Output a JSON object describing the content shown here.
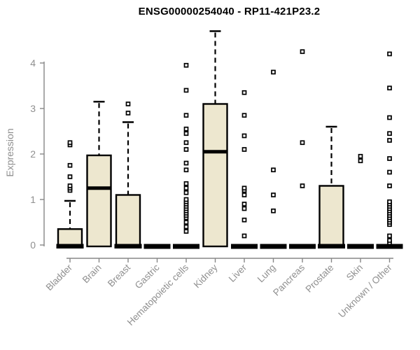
{
  "colors": {
    "background": "#ffffff",
    "box_fill": "#ede7cf",
    "box_line": "#000000",
    "axis_line": "#878787",
    "axis_text": "#8f8f8f",
    "title_text": "#000000"
  },
  "chart_data": {
    "type": "boxplot",
    "title": "ENSG00000254040 - RP11-421P23.2",
    "xlabel": "",
    "ylabel": "Expression",
    "ylim": [
      0,
      4.77
    ],
    "yticks": [
      0,
      1,
      2,
      3,
      4
    ],
    "grid": false,
    "legend": "none",
    "categories": [
      "Bladder",
      "Brain",
      "Breast",
      "Gastric",
      "Hematopoietic cells",
      "Kidney",
      "Liver",
      "Lung",
      "Pancreas",
      "Prostate",
      "Skin",
      "Unknown / Other"
    ],
    "boxes": [
      {
        "category": "Bladder",
        "q1": 0,
        "median": 0,
        "q3": 0.35,
        "whisker_low": 0,
        "whisker_high": 0.97,
        "outliers": [
          1.2,
          1.25,
          1.3,
          1.5,
          1.75,
          2.2,
          2.25
        ]
      },
      {
        "category": "Brain",
        "q1": 0,
        "median": 1.25,
        "q3": 1.97,
        "whisker_low": 0,
        "whisker_high": 3.15,
        "outliers": []
      },
      {
        "category": "Breast",
        "q1": 0,
        "median": 0,
        "q3": 1.1,
        "whisker_low": 0,
        "whisker_high": 2.7,
        "outliers": [
          2.9,
          3.1
        ]
      },
      {
        "category": "Gastric",
        "q1": 0,
        "median": 0,
        "q3": 0,
        "whisker_low": 0,
        "whisker_high": 0,
        "outliers": []
      },
      {
        "category": "Hematopoietic cells",
        "q1": 0,
        "median": 0,
        "q3": 0,
        "whisker_low": 0,
        "whisker_high": 0,
        "outliers": [
          0.3,
          0.4,
          0.5,
          0.6,
          0.65,
          0.7,
          0.75,
          0.8,
          0.85,
          0.9,
          0.95,
          1.0,
          1.15,
          1.25,
          1.35,
          1.65,
          1.8,
          2.1,
          2.25,
          2.45,
          2.55,
          2.85,
          3.4,
          3.95
        ]
      },
      {
        "category": "Kidney",
        "q1": 0,
        "median": 2.05,
        "q3": 3.1,
        "whisker_low": 0,
        "whisker_high": 4.7,
        "outliers": []
      },
      {
        "category": "Liver",
        "q1": 0,
        "median": 0,
        "q3": 0,
        "whisker_low": 0,
        "whisker_high": 0,
        "outliers": [
          0.2,
          0.55,
          0.8,
          0.9,
          1.1,
          1.2,
          1.25,
          2.1,
          2.4,
          2.85,
          3.35
        ]
      },
      {
        "category": "Lung",
        "q1": 0,
        "median": 0,
        "q3": 0,
        "whisker_low": 0,
        "whisker_high": 0,
        "outliers": [
          0.75,
          1.1,
          1.65,
          3.8
        ]
      },
      {
        "category": "Pancreas",
        "q1": 0,
        "median": 0,
        "q3": 0,
        "whisker_low": 0,
        "whisker_high": 0,
        "outliers": [
          1.3,
          2.25,
          4.25
        ]
      },
      {
        "category": "Prostate",
        "q1": 0,
        "median": 0,
        "q3": 1.3,
        "whisker_low": 0,
        "whisker_high": 2.6,
        "outliers": []
      },
      {
        "category": "Skin",
        "q1": 0,
        "median": 0,
        "q3": 0,
        "whisker_low": 0,
        "whisker_high": 0,
        "outliers": [
          1.85,
          1.95
        ]
      },
      {
        "category": "Unknown / Other",
        "q1": 0,
        "median": 0,
        "q3": 0,
        "whisker_low": 0,
        "whisker_high": 0,
        "outliers": [
          0.05,
          0.1,
          0.2,
          0.45,
          0.5,
          0.55,
          0.6,
          0.65,
          0.7,
          0.75,
          0.8,
          0.85,
          0.9,
          0.95,
          1.3,
          1.6,
          1.9,
          2.3,
          2.45,
          2.8,
          3.45,
          4.2
        ]
      }
    ]
  }
}
